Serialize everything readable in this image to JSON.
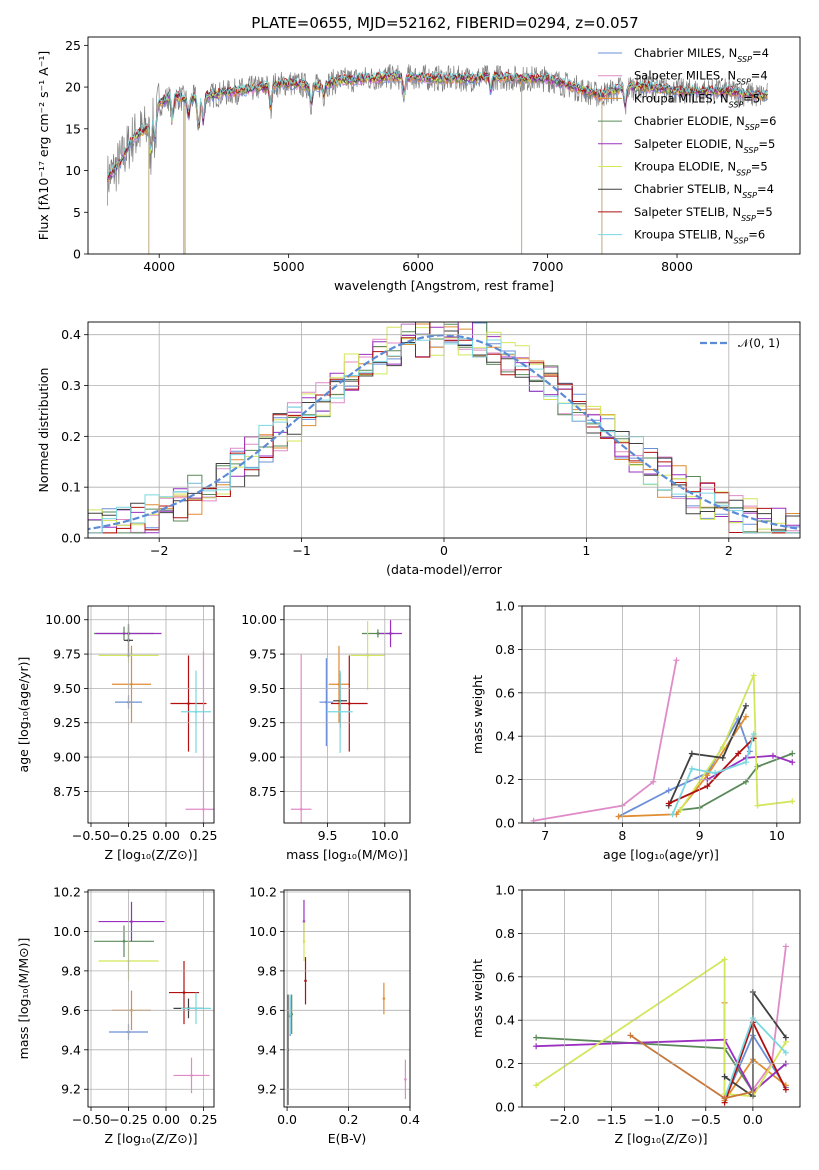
{
  "figure": {
    "title": "PLATE=0655, MJD=52162, FIBERID=0294, z=0.057"
  },
  "chart_data": [
    {
      "id": "spectrum",
      "type": "line",
      "xlabel": "wavelength [Angstrom, rest frame]",
      "ylabel": "Flux [fλ10⁻¹⁷ erg cm⁻² s⁻¹ A⁻¹]",
      "xlim": [
        3450,
        8950
      ],
      "ylim": [
        0,
        26
      ],
      "xticks": [
        "4000",
        "5000",
        "6000",
        "7000",
        "8000"
      ],
      "yticks": [
        "0",
        "5",
        "10",
        "15",
        "20",
        "25"
      ],
      "data_color": "#808080",
      "spectrum_knots": [
        [
          3600,
          9
        ],
        [
          3700,
          11
        ],
        [
          3800,
          14
        ],
        [
          3900,
          15
        ],
        [
          4000,
          18
        ],
        [
          4100,
          19
        ],
        [
          4200,
          18.5
        ],
        [
          4400,
          19
        ],
        [
          4600,
          19.5
        ],
        [
          4800,
          20
        ],
        [
          5000,
          20.5
        ],
        [
          5200,
          20
        ],
        [
          5400,
          20.8
        ],
        [
          5600,
          21
        ],
        [
          5800,
          21.2
        ],
        [
          6000,
          21.2
        ],
        [
          6200,
          21
        ],
        [
          6400,
          21
        ],
        [
          6600,
          21.2
        ],
        [
          6800,
          21
        ],
        [
          7000,
          21
        ],
        [
          7200,
          20
        ],
        [
          7400,
          19
        ],
        [
          7600,
          20
        ],
        [
          7800,
          20
        ],
        [
          8000,
          19.5
        ],
        [
          8200,
          19.5
        ],
        [
          8400,
          19.5
        ],
        [
          8600,
          19
        ]
      ],
      "series": [
        {
          "name": "Chabrier MILES, N_SSP=4",
          "color": "#6a8fd8"
        },
        {
          "name": "Salpeter MILES, N_SSP=4",
          "color": "#e08bc8"
        },
        {
          "name": "Kroupa MILES, N_SSP=5",
          "color": "#e08c30"
        },
        {
          "name": "Chabrier ELODIE, N_SSP=6",
          "color": "#5a8a5a"
        },
        {
          "name": "Salpeter ELODIE, N_SSP=5",
          "color": "#9b30c0"
        },
        {
          "name": "Kroupa ELODIE, N_SSP=5",
          "color": "#d4e65a"
        },
        {
          "name": "Chabrier STELIB, N_SSP=4",
          "color": "#404040"
        },
        {
          "name": "Salpeter STELIB, N_SSP=5",
          "color": "#b01010"
        },
        {
          "name": "Kroupa STELIB, N_SSP=6",
          "color": "#7ad8e0"
        }
      ],
      "legend_labels": [
        {
          "text": "Chabrier MILES, N",
          "sub": "SSP",
          "tail": "=4"
        },
        {
          "text": "Salpeter MILES, N",
          "sub": "SSP",
          "tail": "=4"
        },
        {
          "text": "Kroupa MILES, N",
          "sub": "SSP",
          "tail": "=5"
        },
        {
          "text": "Chabrier ELODIE, N",
          "sub": "SSP",
          "tail": "=6"
        },
        {
          "text": "Salpeter ELODIE, N",
          "sub": "SSP",
          "tail": "=5"
        },
        {
          "text": "Kroupa ELODIE, N",
          "sub": "SSP",
          "tail": "=5"
        },
        {
          "text": "Chabrier STELIB, N",
          "sub": "SSP",
          "tail": "=4"
        },
        {
          "text": "Salpeter STELIB, N",
          "sub": "SSP",
          "tail": "=5"
        },
        {
          "text": "Kroupa STELIB, N",
          "sub": "SSP",
          "tail": "=6"
        }
      ],
      "legend_position": "right"
    },
    {
      "id": "residuals",
      "type": "area",
      "xlabel": "(data-model)/error",
      "ylabel": "Normed distribution",
      "xlim": [
        -2.5,
        2.5
      ],
      "ylim": [
        0,
        0.425
      ],
      "xticks": [
        "−2",
        "−1",
        "0",
        "1",
        "2"
      ],
      "yticks": [
        "0.0",
        "0.1",
        "0.2",
        "0.3",
        "0.4"
      ],
      "bin_width": 0.1,
      "curve": {
        "name": "𝒩(0, 1)",
        "color": "#5b8bd6",
        "style": "dashed"
      },
      "grid": true
    },
    {
      "id": "age_vs_Z",
      "type": "scatter",
      "xlabel": "Z [log₁₀(Z/Z⊙)]",
      "ylabel": "age  [log₁₀(age/yr)]",
      "xlim": [
        -0.52,
        0.32
      ],
      "ylim": [
        8.52,
        10.1
      ],
      "xticks": [
        "−0.50",
        "−0.25",
        "0.00",
        "0.25"
      ],
      "yticks": [
        "8.75",
        "9.00",
        "9.25",
        "9.50",
        "9.75",
        "10.00"
      ],
      "points": [
        {
          "x": -0.25,
          "y": 9.4,
          "xerr": 0.09,
          "yerr": 0.05,
          "color": "#6a8fd8"
        },
        {
          "x": 0.25,
          "y": 8.62,
          "xerr": 0.12,
          "yerr": 1.15,
          "color": "#e08bc8"
        },
        {
          "x": -0.23,
          "y": 9.53,
          "xerr": 0.13,
          "yerr": 0.28,
          "color": "#e08c30"
        },
        {
          "x": -0.28,
          "y": 9.9,
          "xerr": 0.2,
          "yerr": 0.05,
          "color": "#5a8a5a"
        },
        {
          "x": -0.25,
          "y": 9.9,
          "xerr": 0.22,
          "yerr": 0.05,
          "color": "#9b30c0"
        },
        {
          "x": -0.25,
          "y": 9.74,
          "xerr": 0.2,
          "yerr": 0.05,
          "color": "#d4e65a"
        },
        {
          "x": -0.25,
          "y": 9.85,
          "xerr": 0.03,
          "yerr": 0.12,
          "color": "#404040"
        },
        {
          "x": 0.15,
          "y": 9.39,
          "xerr": 0.12,
          "yerr": 0.35,
          "color": "#b01010"
        },
        {
          "x": 0.2,
          "y": 9.33,
          "xerr": 0.1,
          "yerr": 0.3,
          "color": "#7ad8e0"
        }
      ]
    },
    {
      "id": "age_vs_mass",
      "type": "scatter",
      "xlabel": "mass [log₁₀(M/M⊙)]",
      "xlim": [
        9.12,
        10.22
      ],
      "ylim": [
        8.52,
        10.1
      ],
      "xticks": [
        "9.5",
        "10.0"
      ],
      "yticks": [
        "8.75",
        "9.00",
        "9.25",
        "9.50",
        "9.75",
        "10.00"
      ],
      "points": [
        {
          "x": 9.49,
          "y": 9.4,
          "xerr": 0.06,
          "yerr": 0.32,
          "color": "#6a8fd8"
        },
        {
          "x": 9.27,
          "y": 8.62,
          "xerr": 0.09,
          "yerr": 1.13,
          "color": "#e08bc8"
        },
        {
          "x": 9.6,
          "y": 9.53,
          "xerr": 0.09,
          "yerr": 0.28,
          "color": "#e08c30"
        },
        {
          "x": 9.94,
          "y": 9.9,
          "xerr": 0.14,
          "yerr": 0.03,
          "color": "#5a8a5a"
        },
        {
          "x": 10.05,
          "y": 9.9,
          "xerr": 0.1,
          "yerr": 0.1,
          "color": "#9b30c0"
        },
        {
          "x": 9.85,
          "y": 9.74,
          "xerr": 0.15,
          "yerr": 0.25,
          "color": "#d4e65a"
        },
        {
          "x": 9.61,
          "y": 9.41,
          "xerr": 0.06,
          "yerr": 0.2,
          "color": "#404040"
        },
        {
          "x": 9.69,
          "y": 9.39,
          "xerr": 0.16,
          "yerr": 0.35,
          "color": "#b01010"
        },
        {
          "x": 9.61,
          "y": 9.33,
          "xerr": 0.11,
          "yerr": 0.3,
          "color": "#7ad8e0"
        }
      ]
    },
    {
      "id": "mass_weight_vs_age",
      "type": "line",
      "xlabel": "age  [log₁₀(age/yr)]",
      "ylabel": "mass weight",
      "xlim": [
        6.7,
        10.3
      ],
      "ylim": [
        0,
        1.0
      ],
      "xticks": [
        "7",
        "8",
        "9",
        "10"
      ],
      "yticks": [
        "0.0",
        "0.2",
        "0.4",
        "0.6",
        "0.8",
        "1.0"
      ],
      "series": [
        {
          "color": "#6a8fd8",
          "x": [
            7.95,
            8.6,
            9.1,
            9.5,
            9.65
          ],
          "y": [
            0.03,
            0.15,
            0.23,
            0.48,
            0.33
          ]
        },
        {
          "color": "#e08bc8",
          "x": [
            6.85,
            8.0,
            8.4,
            8.7
          ],
          "y": [
            0.01,
            0.08,
            0.19,
            0.75
          ]
        },
        {
          "color": "#e08c30",
          "x": [
            7.95,
            8.7,
            9.1,
            9.6
          ],
          "y": [
            0.03,
            0.04,
            0.22,
            0.49
          ]
        },
        {
          "color": "#5a8a5a",
          "x": [
            8.75,
            9.0,
            9.6,
            9.75,
            10.2
          ],
          "y": [
            0.06,
            0.07,
            0.19,
            0.26,
            0.32
          ]
        },
        {
          "color": "#9b30c0",
          "x": [
            9.1,
            9.6,
            9.95,
            10.2
          ],
          "y": [
            0.2,
            0.3,
            0.31,
            0.28
          ]
        },
        {
          "color": "#d4e65a",
          "x": [
            8.75,
            9.3,
            9.7,
            9.75,
            10.2
          ],
          "y": [
            0.06,
            0.35,
            0.68,
            0.08,
            0.1
          ]
        },
        {
          "color": "#404040",
          "x": [
            8.6,
            8.9,
            9.3,
            9.6
          ],
          "y": [
            0.08,
            0.32,
            0.3,
            0.54
          ]
        },
        {
          "color": "#b01010",
          "x": [
            8.6,
            9.1,
            9.5,
            9.7
          ],
          "y": [
            0.09,
            0.17,
            0.32,
            0.39
          ]
        },
        {
          "color": "#7ad8e0",
          "x": [
            8.65,
            8.9,
            9.2,
            9.6,
            9.7
          ],
          "y": [
            0.04,
            0.25,
            0.23,
            0.28,
            0.41
          ]
        }
      ],
      "grid": true
    },
    {
      "id": "mass_vs_Z",
      "type": "scatter",
      "xlabel": "Z [log₁₀(Z/Z⊙)]",
      "ylabel": "mass [log₁₀(M/M⊙)]",
      "xlim": [
        -0.52,
        0.32
      ],
      "ylim": [
        9.11,
        10.21
      ],
      "xticks": [
        "−0.50",
        "−0.25",
        "0.00",
        "0.25"
      ],
      "yticks": [
        "9.2",
        "9.4",
        "9.6",
        "9.8",
        "10.0",
        "10.2"
      ],
      "points": [
        {
          "x": -0.25,
          "y": 9.49,
          "xerr": 0.13,
          "yerr": 0.04,
          "color": "#6a8fd8"
        },
        {
          "x": 0.17,
          "y": 9.27,
          "xerr": 0.12,
          "yerr": 0.09,
          "color": "#e08bc8"
        },
        {
          "x": -0.23,
          "y": 9.6,
          "xerr": 0.13,
          "yerr": 0.1,
          "color": "#e08c30"
        },
        {
          "x": -0.28,
          "y": 9.95,
          "xerr": 0.2,
          "yerr": 0.08,
          "color": "#5a8a5a"
        },
        {
          "x": -0.23,
          "y": 10.05,
          "xerr": 0.22,
          "yerr": 0.1,
          "color": "#9b30c0"
        },
        {
          "x": -0.25,
          "y": 9.85,
          "xerr": 0.2,
          "yerr": 0.1,
          "color": "#d4e65a"
        },
        {
          "x": 0.15,
          "y": 9.61,
          "xerr": 0.1,
          "yerr": 0.05,
          "color": "#404040"
        },
        {
          "x": 0.12,
          "y": 9.69,
          "xerr": 0.1,
          "yerr": 0.16,
          "color": "#b01010"
        },
        {
          "x": 0.2,
          "y": 9.61,
          "xerr": 0.1,
          "yerr": 0.08,
          "color": "#7ad8e0"
        }
      ]
    },
    {
      "id": "mass_vs_ebv",
      "type": "scatter",
      "xlabel": "E(B-V)",
      "xlim": [
        -0.01,
        0.4
      ],
      "ylim": [
        9.11,
        10.21
      ],
      "xticks": [
        "0.0",
        "0.2",
        "0.4"
      ],
      "yticks": [
        "9.2",
        "9.4",
        "9.6",
        "9.8",
        "10.0",
        "10.2"
      ],
      "points": [
        {
          "x": 0.01,
          "y": 9.57,
          "yerr": 0.1,
          "color": "#6a8fd8"
        },
        {
          "x": 0.385,
          "y": 9.25,
          "yerr": 0.1,
          "color": "#e08bc8"
        },
        {
          "x": 0.315,
          "y": 9.66,
          "yerr": 0.08,
          "color": "#e08c30"
        },
        {
          "x": 0.015,
          "y": 9.58,
          "yerr": 0.1,
          "color": "#5a8a5a"
        },
        {
          "x": 0.055,
          "y": 10.05,
          "yerr": 0.11,
          "color": "#9b30c0"
        },
        {
          "x": 0.055,
          "y": 9.95,
          "yerr": 0.1,
          "color": "#d4e65a"
        },
        {
          "x": 0.003,
          "y": 9.4,
          "yerr": 0.28,
          "color": "#404040"
        },
        {
          "x": 0.06,
          "y": 9.75,
          "yerr": 0.12,
          "color": "#b01010"
        },
        {
          "x": 0.01,
          "y": 9.58,
          "yerr": 0.1,
          "color": "#7ad8e0"
        }
      ]
    },
    {
      "id": "mass_weight_vs_Z",
      "type": "line",
      "xlabel": "Z [log₁₀(Z/Z⊙)]",
      "ylabel": "mass weight",
      "xlim": [
        -2.45,
        0.5
      ],
      "ylim": [
        0,
        1.0
      ],
      "xticks": [
        "−2.0",
        "−1.5",
        "−1.0",
        "−0.5",
        "0.0"
      ],
      "yticks": [
        "0.0",
        "0.2",
        "0.4",
        "0.6",
        "0.8",
        "1.0"
      ],
      "series": [
        {
          "color": "#6a8fd8",
          "x": [
            -0.3,
            0.0,
            0.35
          ],
          "y": [
            0.03,
            0.33,
            0.09
          ]
        },
        {
          "color": "#e08bc8",
          "x": [
            0.0,
            0.2,
            0.35
          ],
          "y": [
            0.08,
            0.2,
            0.74
          ]
        },
        {
          "color": "#e08c30",
          "x": [
            -0.3,
            -0.3,
            0.0,
            0.35
          ],
          "y": [
            0.48,
            0.03,
            0.22,
            0.1
          ]
        },
        {
          "color": "#5a8a5a",
          "x": [
            -2.3,
            -0.3,
            0.0,
            0.35
          ],
          "y": [
            0.32,
            0.27,
            0.07,
            0.2
          ]
        },
        {
          "color": "#9b30c0",
          "x": [
            -2.3,
            -0.3,
            0.0,
            0.35
          ],
          "y": [
            0.28,
            0.31,
            0.07,
            0.2
          ]
        },
        {
          "color": "#d4e65a",
          "x": [
            -2.3,
            -0.3,
            -0.3,
            0.0,
            0.35
          ],
          "y": [
            0.1,
            0.68,
            0.06,
            0.05,
            0.3
          ]
        },
        {
          "color": "#404040",
          "x": [
            -0.3,
            0.0,
            0.0,
            0.35
          ],
          "y": [
            0.14,
            0.05,
            0.53,
            0.32
          ]
        },
        {
          "color": "#b01010",
          "x": [
            -0.3,
            0.0,
            0.35
          ],
          "y": [
            0.02,
            0.39,
            0.08
          ]
        },
        {
          "color": "#7ad8e0",
          "x": [
            -0.3,
            0.0,
            0.35
          ],
          "y": [
            0.04,
            0.41,
            0.25
          ]
        }
      ],
      "extra_brown": {
        "color": "#c8783c",
        "x": [
          -1.3,
          -0.3,
          0.0
        ],
        "y": [
          0.33,
          0.04,
          0.07
        ]
      },
      "grid": true
    }
  ]
}
